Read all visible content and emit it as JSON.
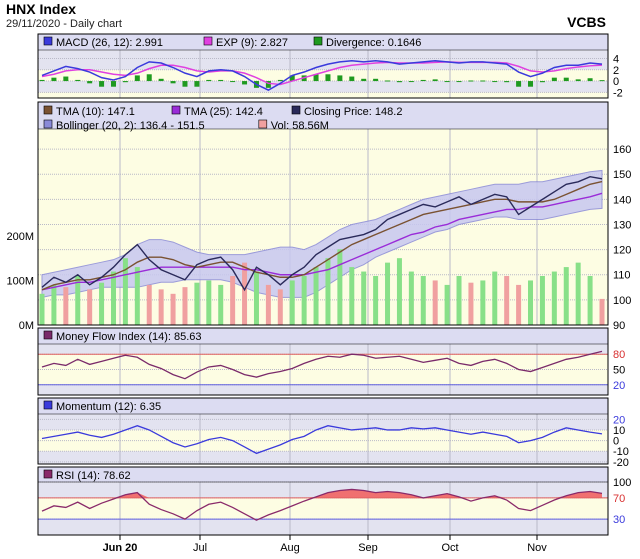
{
  "header": {
    "title": "HNX Index",
    "subtitle": "29/11/2020 - Daily chart",
    "brand": "VCBS"
  },
  "colors": {
    "panel_bg": "#fdfde3",
    "legend_bg": "#dcdcf2",
    "grid": "#b9b9c8",
    "border": "#000000",
    "macd": "#3a3adc",
    "exp": "#e040e0",
    "divergence": "#1f9a1f",
    "tma10": "#7a5232",
    "tma25": "#9a2cd8",
    "close": "#2a2a5a",
    "bollinger_fill": "#c8c8f0",
    "bollinger_line": "#8a8ad8",
    "vol_up": "#88e088",
    "vol_down": "#f0a0a0",
    "mfi": "#7a2a6a",
    "momentum": "#3a3adc",
    "rsi": "#8a2a6a",
    "rsi_fill": "#f07070",
    "level_red": "#e06060",
    "level_blue": "#6060e0"
  },
  "months": [
    "Jun 20",
    "Jul",
    "Aug",
    "Sep",
    "Oct",
    "Nov"
  ],
  "chart_data": [
    {
      "type": "line",
      "title": "MACD",
      "legend": [
        {
          "name": "MACD (26, 12): 2.991",
          "color": "#3a3adc"
        },
        {
          "name": "EXP (9): 2.827",
          "color": "#e040e0"
        },
        {
          "name": "Divergence: 0.1646",
          "color": "#1f9a1f"
        }
      ],
      "ylim": [
        -3,
        5.5
      ],
      "yticks": [
        "4",
        "2",
        "0",
        "-2"
      ],
      "ytick_values": [
        4,
        2,
        0,
        -2
      ],
      "series": [
        {
          "name": "MACD (26, 12)",
          "values": [
            1.0,
            1.8,
            2.6,
            2.2,
            1.6,
            0.6,
            0.2,
            0.8,
            2.4,
            3.4,
            3.2,
            2.4,
            1.4,
            0.8,
            1.8,
            2.0,
            1.8,
            0.8,
            -0.6,
            -1.6,
            -0.4,
            1.0,
            1.6,
            2.4,
            3.0,
            3.4,
            3.6,
            3.4,
            3.6,
            3.4,
            3.0,
            3.2,
            3.4,
            3.6,
            3.4,
            3.2,
            3.4,
            3.4,
            3.2,
            3.0,
            1.6,
            0.8,
            1.4,
            2.4,
            2.8,
            2.8,
            3.2,
            2.991
          ]
        },
        {
          "name": "EXP (9)",
          "values": [
            0.8,
            1.2,
            1.8,
            2.0,
            2.0,
            1.6,
            1.2,
            1.0,
            1.4,
            2.2,
            2.8,
            2.8,
            2.4,
            1.8,
            1.6,
            1.8,
            1.8,
            1.4,
            0.6,
            -0.4,
            -0.6,
            0.0,
            0.6,
            1.2,
            1.8,
            2.4,
            2.8,
            3.0,
            3.2,
            3.3,
            3.2,
            3.2,
            3.2,
            3.3,
            3.4,
            3.3,
            3.3,
            3.3,
            3.3,
            3.2,
            2.6,
            1.8,
            1.6,
            1.8,
            2.2,
            2.5,
            2.7,
            2.827
          ]
        },
        {
          "name": "Divergence",
          "values": [
            0.2,
            0.6,
            0.8,
            0.2,
            -0.4,
            -1.0,
            -1.0,
            -0.2,
            1.0,
            1.2,
            0.4,
            -0.4,
            -1.0,
            -1.0,
            0.2,
            0.2,
            0.0,
            -0.6,
            -1.2,
            -1.2,
            0.2,
            1.0,
            1.0,
            1.2,
            1.2,
            1.0,
            0.8,
            0.4,
            0.4,
            0.1,
            -0.2,
            0.0,
            0.2,
            0.3,
            0.0,
            -0.1,
            0.1,
            0.1,
            -0.1,
            -0.2,
            -1.0,
            -1.0,
            -0.2,
            0.6,
            0.6,
            0.3,
            0.5,
            0.1646
          ]
        }
      ]
    },
    {
      "type": "line",
      "title": "Price",
      "legend": [
        {
          "name": "TMA (10): 147.1",
          "color": "#7a5232"
        },
        {
          "name": "TMA (25): 142.4",
          "color": "#9a2cd8"
        },
        {
          "name": "Closing Price: 148.2",
          "color": "#2a2a5a"
        },
        {
          "name": "Bollinger (20, 2): 136.4 - 151.5",
          "color": "#8a8ad8"
        },
        {
          "name": "Vol: 58.56M",
          "color": "#f0a0a0"
        }
      ],
      "ylim": [
        90,
        168
      ],
      "yticks": [
        "160",
        "150",
        "140",
        "130",
        "120",
        "110",
        "100",
        "90"
      ],
      "ytick_values": [
        160,
        150,
        140,
        130,
        120,
        110,
        100,
        90
      ],
      "vol_ticks": [
        "200M",
        "100M",
        "0M"
      ],
      "vol_tick_values": [
        200,
        100,
        0
      ],
      "vol_ylim": [
        0,
        440
      ],
      "series": [
        {
          "name": "Closing Price",
          "values": [
            105,
            109,
            107,
            110,
            106,
            109,
            113,
            118,
            122,
            116,
            112,
            110,
            108,
            114,
            116,
            117,
            112,
            104,
            113,
            110,
            106,
            110,
            113,
            118,
            121,
            124,
            125,
            126,
            128,
            132,
            134,
            136,
            138,
            137,
            139,
            141,
            138,
            140,
            142,
            141,
            134,
            137,
            140,
            143,
            146,
            147,
            149,
            148.2
          ]
        },
        {
          "name": "TMA (10)",
          "values": [
            104,
            106,
            107,
            108,
            108,
            109,
            110,
            112,
            115,
            117,
            117,
            116,
            114,
            113,
            114,
            115,
            115,
            113,
            111,
            110,
            109,
            109,
            110,
            113,
            116,
            119,
            122,
            124,
            126,
            128,
            130,
            132,
            134,
            135,
            136,
            137,
            138,
            139,
            140,
            140,
            139,
            139,
            139,
            140,
            142,
            144,
            146,
            147.1
          ]
        },
        {
          "name": "TMA (25)",
          "values": [
            104,
            105,
            106,
            107,
            107,
            108,
            109,
            110,
            111,
            112,
            113,
            113,
            113,
            113,
            113,
            113,
            113,
            112,
            112,
            111,
            110,
            110,
            110,
            111,
            112,
            114,
            116,
            118,
            120,
            122,
            124,
            126,
            127,
            129,
            130,
            132,
            133,
            134,
            135,
            136,
            136,
            137,
            137,
            138,
            139,
            140,
            141,
            142.4
          ]
        },
        {
          "name": "Bollinger upper",
          "values": [
            110,
            111,
            112,
            113,
            114,
            115,
            116,
            118,
            122,
            124,
            124,
            123,
            121,
            119,
            118,
            118,
            118,
            118,
            119,
            120,
            121,
            121,
            120,
            122,
            125,
            128,
            130,
            131,
            132,
            134,
            136,
            138,
            140,
            141,
            142,
            143,
            144,
            145,
            146,
            146,
            146,
            147,
            147,
            148,
            149,
            150,
            151,
            151.5
          ]
        },
        {
          "name": "Bollinger lower",
          "values": [
            101,
            102,
            102,
            103,
            104,
            105,
            105,
            105,
            105,
            106,
            107,
            107,
            108,
            108,
            108,
            108,
            107,
            105,
            103,
            102,
            101,
            101,
            101,
            103,
            106,
            109,
            112,
            114,
            117,
            119,
            121,
            123,
            125,
            127,
            128,
            130,
            131,
            132,
            133,
            133,
            132,
            132,
            132,
            133,
            134,
            135,
            136,
            136.4
          ]
        },
        {
          "name": "Vol",
          "values": [
            70,
            90,
            85,
            110,
            80,
            95,
            120,
            150,
            130,
            90,
            80,
            70,
            85,
            95,
            100,
            90,
            110,
            140,
            120,
            90,
            80,
            100,
            110,
            130,
            150,
            170,
            130,
            120,
            110,
            140,
            150,
            120,
            110,
            100,
            90,
            110,
            95,
            100,
            120,
            110,
            90,
            100,
            110,
            120,
            130,
            140,
            110,
            58.56
          ]
        }
      ]
    },
    {
      "type": "line",
      "title": "Money Flow Index",
      "legend": [
        {
          "name": "Money Flow Index (14): 85.63",
          "color": "#7a2a6a"
        }
      ],
      "ylim": [
        0,
        100
      ],
      "yticks": [
        "80",
        "50",
        "20"
      ],
      "ytick_values": [
        80,
        50,
        20
      ],
      "series": [
        {
          "name": "Money Flow Index (14)",
          "values": [
            55,
            62,
            58,
            70,
            60,
            66,
            72,
            78,
            74,
            60,
            52,
            40,
            32,
            45,
            55,
            58,
            50,
            40,
            35,
            42,
            46,
            52,
            62,
            70,
            76,
            74,
            80,
            78,
            72,
            74,
            76,
            70,
            64,
            68,
            72,
            62,
            58,
            66,
            70,
            62,
            50,
            46,
            54,
            62,
            70,
            74,
            80,
            85.63
          ]
        }
      ]
    },
    {
      "type": "line",
      "title": "Momentum",
      "legend": [
        {
          "name": "Momentum (12): 6.35",
          "color": "#3a3adc"
        }
      ],
      "ylim": [
        -22,
        25
      ],
      "yticks": [
        "20",
        "10",
        "0",
        "-10",
        "-20"
      ],
      "ytick_values": [
        20,
        10,
        0,
        -10,
        -20
      ],
      "series": [
        {
          "name": "Momentum (12)",
          "values": [
            2,
            4,
            6,
            8,
            5,
            3,
            6,
            10,
            14,
            10,
            4,
            -2,
            -6,
            -3,
            1,
            3,
            0,
            -6,
            -12,
            -8,
            -4,
            1,
            4,
            10,
            14,
            12,
            10,
            11,
            12,
            10,
            10,
            12,
            11,
            12,
            10,
            8,
            6,
            8,
            6,
            4,
            -2,
            0,
            3,
            8,
            12,
            10,
            8,
            6.35
          ]
        }
      ]
    },
    {
      "type": "area",
      "title": "RSI",
      "legend": [
        {
          "name": "RSI (14): 78.62",
          "color": "#8a2a6a"
        }
      ],
      "ylim": [
        0,
        100
      ],
      "yticks": [
        "100",
        "70",
        "30"
      ],
      "ytick_values": [
        100,
        70,
        30
      ],
      "series": [
        {
          "name": "RSI (14)",
          "values": [
            45,
            55,
            52,
            62,
            50,
            60,
            68,
            76,
            80,
            58,
            48,
            40,
            30,
            46,
            58,
            62,
            52,
            40,
            28,
            38,
            46,
            55,
            64,
            72,
            80,
            84,
            86,
            84,
            80,
            82,
            80,
            76,
            70,
            74,
            78,
            72,
            64,
            70,
            74,
            66,
            50,
            46,
            56,
            66,
            74,
            80,
            82,
            78.62
          ]
        }
      ]
    }
  ]
}
